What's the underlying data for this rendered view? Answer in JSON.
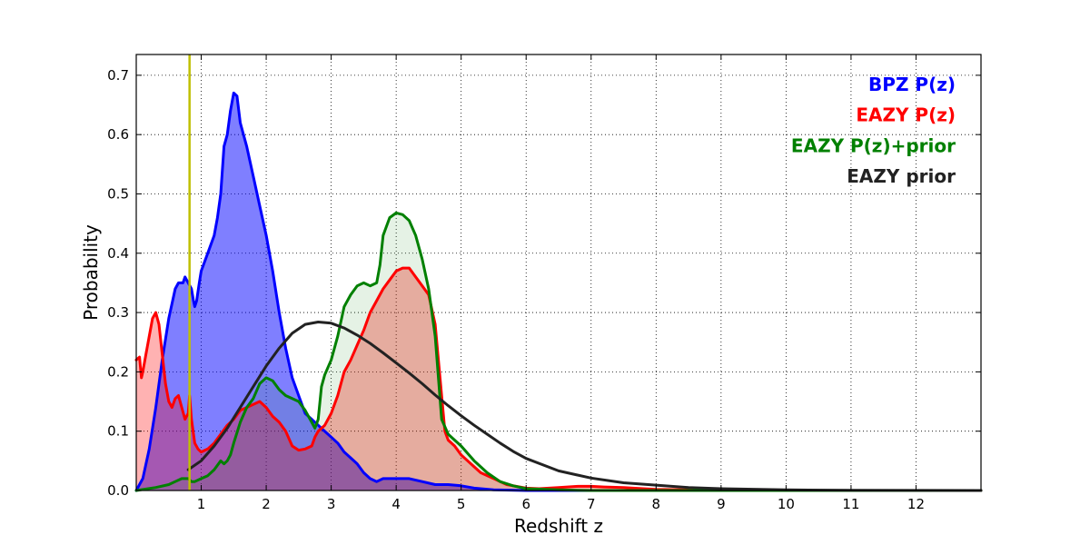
{
  "chart_data": {
    "type": "area",
    "xlabel": "Redshift z",
    "ylabel": "Probability",
    "xlim": [
      0,
      13
    ],
    "ylim": [
      0,
      0.735
    ],
    "xticks": [
      1,
      2,
      3,
      4,
      5,
      6,
      7,
      8,
      9,
      10,
      11,
      12
    ],
    "yticks": [
      0.0,
      0.1,
      0.2,
      0.3,
      0.4,
      0.5,
      0.6,
      0.7
    ],
    "grid": true,
    "legend_position": "top-right",
    "vertical_line": {
      "x": 0.82,
      "color": "#bfbf00"
    },
    "series": [
      {
        "name": "BPZ P(z)",
        "color": "#0000ff",
        "fill": "#0000ff",
        "fill_opacity": 0.5,
        "points": [
          [
            0,
            0
          ],
          [
            0.1,
            0.02
          ],
          [
            0.2,
            0.07
          ],
          [
            0.3,
            0.14
          ],
          [
            0.4,
            0.22
          ],
          [
            0.5,
            0.29
          ],
          [
            0.6,
            0.34
          ],
          [
            0.65,
            0.35
          ],
          [
            0.72,
            0.35
          ],
          [
            0.75,
            0.36
          ],
          [
            0.8,
            0.35
          ],
          [
            0.85,
            0.34
          ],
          [
            0.88,
            0.32
          ],
          [
            0.9,
            0.31
          ],
          [
            0.93,
            0.32
          ],
          [
            0.97,
            0.35
          ],
          [
            1.0,
            0.37
          ],
          [
            1.1,
            0.4
          ],
          [
            1.2,
            0.43
          ],
          [
            1.25,
            0.46
          ],
          [
            1.3,
            0.5
          ],
          [
            1.35,
            0.58
          ],
          [
            1.4,
            0.6
          ],
          [
            1.45,
            0.64
          ],
          [
            1.5,
            0.67
          ],
          [
            1.55,
            0.665
          ],
          [
            1.6,
            0.62
          ],
          [
            1.7,
            0.58
          ],
          [
            1.8,
            0.53
          ],
          [
            1.9,
            0.48
          ],
          [
            2.0,
            0.43
          ],
          [
            2.1,
            0.37
          ],
          [
            2.2,
            0.3
          ],
          [
            2.3,
            0.24
          ],
          [
            2.4,
            0.19
          ],
          [
            2.5,
            0.16
          ],
          [
            2.6,
            0.13
          ],
          [
            2.7,
            0.12
          ],
          [
            2.8,
            0.11
          ],
          [
            2.9,
            0.1
          ],
          [
            3.0,
            0.09
          ],
          [
            3.1,
            0.08
          ],
          [
            3.2,
            0.065
          ],
          [
            3.3,
            0.055
          ],
          [
            3.4,
            0.045
          ],
          [
            3.5,
            0.03
          ],
          [
            3.6,
            0.02
          ],
          [
            3.7,
            0.015
          ],
          [
            3.8,
            0.02
          ],
          [
            4.0,
            0.02
          ],
          [
            4.2,
            0.02
          ],
          [
            4.4,
            0.015
          ],
          [
            4.6,
            0.01
          ],
          [
            4.8,
            0.01
          ],
          [
            5.0,
            0.008
          ],
          [
            5.2,
            0.004
          ],
          [
            5.5,
            0.001
          ],
          [
            6.0,
            0
          ],
          [
            13,
            0
          ]
        ]
      },
      {
        "name": "EAZY P(z)",
        "color": "#ff0000",
        "fill": "#ff0000",
        "fill_opacity": 0.3,
        "points": [
          [
            0,
            0.22
          ],
          [
            0.05,
            0.225
          ],
          [
            0.08,
            0.19
          ],
          [
            0.1,
            0.2
          ],
          [
            0.15,
            0.23
          ],
          [
            0.2,
            0.26
          ],
          [
            0.25,
            0.29
          ],
          [
            0.3,
            0.3
          ],
          [
            0.35,
            0.28
          ],
          [
            0.4,
            0.23
          ],
          [
            0.45,
            0.18
          ],
          [
            0.5,
            0.15
          ],
          [
            0.55,
            0.14
          ],
          [
            0.6,
            0.155
          ],
          [
            0.65,
            0.16
          ],
          [
            0.7,
            0.14
          ],
          [
            0.75,
            0.12
          ],
          [
            0.8,
            0.13
          ],
          [
            0.82,
            0.16
          ],
          [
            0.85,
            0.12
          ],
          [
            0.9,
            0.08
          ],
          [
            0.95,
            0.07
          ],
          [
            1.0,
            0.065
          ],
          [
            1.1,
            0.07
          ],
          [
            1.2,
            0.08
          ],
          [
            1.3,
            0.095
          ],
          [
            1.4,
            0.11
          ],
          [
            1.5,
            0.12
          ],
          [
            1.6,
            0.135
          ],
          [
            1.7,
            0.14
          ],
          [
            1.8,
            0.145
          ],
          [
            1.9,
            0.15
          ],
          [
            2.0,
            0.14
          ],
          [
            2.1,
            0.125
          ],
          [
            2.2,
            0.115
          ],
          [
            2.3,
            0.1
          ],
          [
            2.4,
            0.075
          ],
          [
            2.5,
            0.068
          ],
          [
            2.6,
            0.07
          ],
          [
            2.7,
            0.075
          ],
          [
            2.75,
            0.09
          ],
          [
            2.8,
            0.1
          ],
          [
            2.9,
            0.11
          ],
          [
            3.0,
            0.13
          ],
          [
            3.1,
            0.16
          ],
          [
            3.2,
            0.2
          ],
          [
            3.3,
            0.22
          ],
          [
            3.4,
            0.245
          ],
          [
            3.5,
            0.27
          ],
          [
            3.6,
            0.3
          ],
          [
            3.7,
            0.32
          ],
          [
            3.8,
            0.34
          ],
          [
            3.9,
            0.355
          ],
          [
            4.0,
            0.37
          ],
          [
            4.1,
            0.375
          ],
          [
            4.2,
            0.375
          ],
          [
            4.3,
            0.36
          ],
          [
            4.4,
            0.345
          ],
          [
            4.5,
            0.33
          ],
          [
            4.6,
            0.28
          ],
          [
            4.7,
            0.16
          ],
          [
            4.75,
            0.1
          ],
          [
            4.8,
            0.085
          ],
          [
            4.9,
            0.075
          ],
          [
            5.0,
            0.06
          ],
          [
            5.1,
            0.05
          ],
          [
            5.2,
            0.04
          ],
          [
            5.3,
            0.03
          ],
          [
            5.5,
            0.02
          ],
          [
            5.7,
            0.01
          ],
          [
            6.0,
            0.004
          ],
          [
            6.2,
            0.003
          ],
          [
            6.5,
            0.005
          ],
          [
            6.8,
            0.007
          ],
          [
            7.0,
            0.007
          ],
          [
            7.2,
            0.006
          ],
          [
            7.5,
            0.005
          ],
          [
            7.8,
            0.003
          ],
          [
            8.0,
            0.002
          ],
          [
            8.5,
            0.001
          ],
          [
            9,
            0
          ],
          [
            13,
            0
          ]
        ]
      },
      {
        "name": "EAZY P(z)+prior",
        "color": "#008000",
        "fill": "#008000",
        "fill_opacity": 0.1,
        "points": [
          [
            0,
            0
          ],
          [
            0.3,
            0.005
          ],
          [
            0.5,
            0.01
          ],
          [
            0.6,
            0.015
          ],
          [
            0.7,
            0.02
          ],
          [
            0.8,
            0.02
          ],
          [
            0.85,
            0.015
          ],
          [
            0.9,
            0.015
          ],
          [
            1.0,
            0.02
          ],
          [
            1.1,
            0.025
          ],
          [
            1.2,
            0.035
          ],
          [
            1.3,
            0.05
          ],
          [
            1.35,
            0.045
          ],
          [
            1.4,
            0.05
          ],
          [
            1.45,
            0.06
          ],
          [
            1.5,
            0.08
          ],
          [
            1.6,
            0.115
          ],
          [
            1.7,
            0.14
          ],
          [
            1.8,
            0.155
          ],
          [
            1.9,
            0.18
          ],
          [
            2.0,
            0.19
          ],
          [
            2.1,
            0.185
          ],
          [
            2.2,
            0.17
          ],
          [
            2.3,
            0.16
          ],
          [
            2.4,
            0.155
          ],
          [
            2.5,
            0.15
          ],
          [
            2.6,
            0.135
          ],
          [
            2.7,
            0.115
          ],
          [
            2.75,
            0.105
          ],
          [
            2.8,
            0.12
          ],
          [
            2.85,
            0.175
          ],
          [
            2.9,
            0.195
          ],
          [
            3.0,
            0.22
          ],
          [
            3.1,
            0.26
          ],
          [
            3.2,
            0.31
          ],
          [
            3.3,
            0.33
          ],
          [
            3.4,
            0.345
          ],
          [
            3.5,
            0.35
          ],
          [
            3.6,
            0.345
          ],
          [
            3.7,
            0.35
          ],
          [
            3.75,
            0.38
          ],
          [
            3.8,
            0.43
          ],
          [
            3.9,
            0.46
          ],
          [
            4.0,
            0.468
          ],
          [
            4.1,
            0.465
          ],
          [
            4.2,
            0.455
          ],
          [
            4.3,
            0.43
          ],
          [
            4.4,
            0.39
          ],
          [
            4.5,
            0.34
          ],
          [
            4.6,
            0.26
          ],
          [
            4.7,
            0.12
          ],
          [
            4.8,
            0.095
          ],
          [
            4.9,
            0.085
          ],
          [
            5.0,
            0.075
          ],
          [
            5.2,
            0.05
          ],
          [
            5.4,
            0.03
          ],
          [
            5.6,
            0.015
          ],
          [
            5.8,
            0.008
          ],
          [
            6.0,
            0.003
          ],
          [
            6.5,
            0.001
          ],
          [
            7,
            0
          ],
          [
            13,
            0
          ]
        ]
      },
      {
        "name": "EAZY prior",
        "color": "#222222",
        "fill": "none",
        "points": [
          [
            0.8,
            0.035
          ],
          [
            1.0,
            0.05
          ],
          [
            1.2,
            0.075
          ],
          [
            1.4,
            0.105
          ],
          [
            1.6,
            0.14
          ],
          [
            1.8,
            0.175
          ],
          [
            2.0,
            0.21
          ],
          [
            2.2,
            0.24
          ],
          [
            2.4,
            0.265
          ],
          [
            2.6,
            0.28
          ],
          [
            2.8,
            0.284
          ],
          [
            3.0,
            0.282
          ],
          [
            3.2,
            0.274
          ],
          [
            3.4,
            0.262
          ],
          [
            3.6,
            0.248
          ],
          [
            3.8,
            0.232
          ],
          [
            4.0,
            0.215
          ],
          [
            4.2,
            0.198
          ],
          [
            4.4,
            0.18
          ],
          [
            4.6,
            0.161
          ],
          [
            4.8,
            0.143
          ],
          [
            5.0,
            0.126
          ],
          [
            5.2,
            0.11
          ],
          [
            5.4,
            0.095
          ],
          [
            5.6,
            0.08
          ],
          [
            5.8,
            0.066
          ],
          [
            6.0,
            0.054
          ],
          [
            6.5,
            0.033
          ],
          [
            7.0,
            0.021
          ],
          [
            7.5,
            0.013
          ],
          [
            8.0,
            0.009
          ],
          [
            8.5,
            0.005
          ],
          [
            9.0,
            0.003
          ],
          [
            10.0,
            0.001
          ],
          [
            11.0,
            0.0003
          ],
          [
            12.0,
            0.0001
          ],
          [
            13.0,
            0
          ]
        ]
      }
    ]
  }
}
